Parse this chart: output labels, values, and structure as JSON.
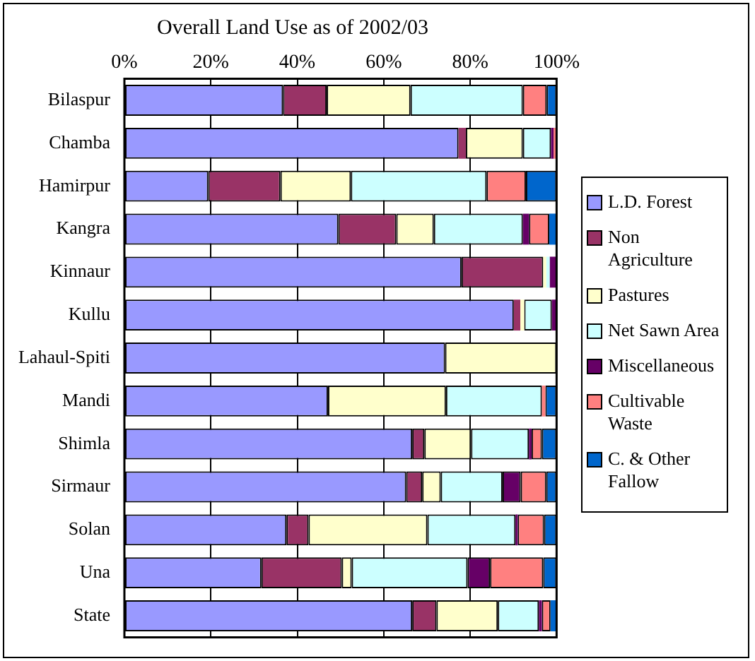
{
  "chart_data": {
    "type": "bar",
    "orientation": "horizontal",
    "stacked": true,
    "title": "Overall Land Use as of 2002/03",
    "categories": [
      "Bilaspur",
      "Chamba",
      "Hamirpur",
      "Kangra",
      "Kinnaur",
      "Kullu",
      "Lahaul-Spiti",
      "Mandi",
      "Shimla",
      "Sirmaur",
      "Solan",
      "Una",
      "State"
    ],
    "series": [
      {
        "name": "L.D. Forest",
        "color": "#9999ff",
        "values": [
          36.7,
          77.3,
          19.4,
          49.5,
          78.0,
          90.1,
          74.2,
          47.1,
          66.6,
          65.2,
          37.5,
          31.7,
          66.6
        ]
      },
      {
        "name": "Non Agriculture",
        "color": "#993366",
        "values": [
          10.1,
          1.7,
          16.7,
          13.4,
          18.9,
          1.5,
          0,
          0,
          2.8,
          3.7,
          5.1,
          18.6,
          5.6
        ]
      },
      {
        "name": "Pastures",
        "color": "#ffffcc",
        "values": [
          19.4,
          13.2,
          16.3,
          8.7,
          0.7,
          0.9,
          25.8,
          27.3,
          10.8,
          4.3,
          27.5,
          2.3,
          14.2
        ]
      },
      {
        "name": "Net Sawn Area",
        "color": "#ccffff",
        "values": [
          26.0,
          6.5,
          31.4,
          20.6,
          0.8,
          6.4,
          0,
          22.2,
          13.4,
          14.3,
          20.4,
          26.8,
          9.5
        ]
      },
      {
        "name": "Miscellaneous",
        "color": "#660066",
        "values": [
          0,
          0.6,
          0,
          1.4,
          1.6,
          1.1,
          0,
          0,
          0.6,
          4.2,
          0.5,
          5.2,
          0.7
        ]
      },
      {
        "name": "Cultivable Waste",
        "color": "#ff8080",
        "values": [
          5.5,
          0.7,
          9.1,
          4.7,
          0,
          0,
          0,
          0.8,
          2.4,
          5.9,
          6.1,
          12.3,
          2.0
        ]
      },
      {
        "name": "C. & Other Fallow",
        "color": "#0066cc",
        "values": [
          2.3,
          0,
          7.1,
          1.7,
          0,
          0,
          0,
          2.6,
          3.4,
          2.4,
          2.9,
          3.1,
          1.4
        ]
      }
    ],
    "xlim": [
      0,
      100
    ],
    "xticks": [
      {
        "value": 0,
        "label": "0%"
      },
      {
        "value": 20,
        "label": "20%"
      },
      {
        "value": 40,
        "label": "40%"
      },
      {
        "value": 60,
        "label": "60%"
      },
      {
        "value": 80,
        "label": "80%"
      },
      {
        "value": 100,
        "label": "100%"
      }
    ],
    "grid": "x",
    "legend": "right"
  }
}
